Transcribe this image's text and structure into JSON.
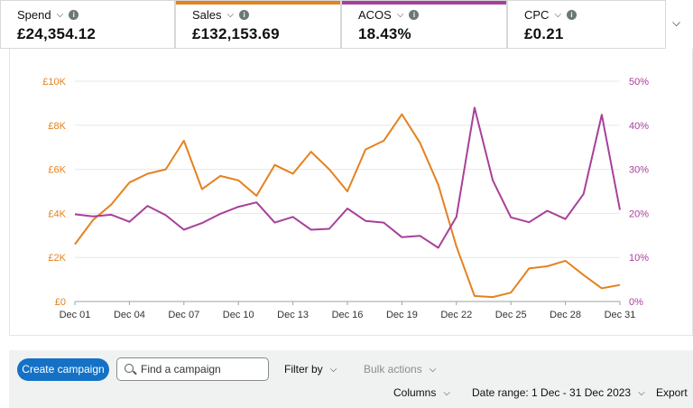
{
  "metrics": [
    {
      "label": "Spend",
      "value": "£24,354.12",
      "color": ""
    },
    {
      "label": "Sales",
      "value": "£132,153.69",
      "color": "#e3821f"
    },
    {
      "label": "ACOS",
      "value": "18.43%",
      "color": "#a8409a"
    },
    {
      "label": "CPC",
      "value": "£0.21",
      "color": ""
    }
  ],
  "toolbar": {
    "create_label": "Create campaign",
    "search_placeholder": "Find a campaign",
    "filter_label": "Filter by",
    "bulk_label": "Bulk actions",
    "columns_label": "Columns",
    "date_range_label": "Date range: 1 Dec - 31 Dec 2023",
    "export_label": "Export"
  },
  "chart_data": {
    "type": "line",
    "x": [
      "Dec 01",
      "Dec 02",
      "Dec 03",
      "Dec 04",
      "Dec 05",
      "Dec 06",
      "Dec 07",
      "Dec 08",
      "Dec 09",
      "Dec 10",
      "Dec 11",
      "Dec 12",
      "Dec 13",
      "Dec 14",
      "Dec 15",
      "Dec 16",
      "Dec 17",
      "Dec 18",
      "Dec 19",
      "Dec 20",
      "Dec 21",
      "Dec 22",
      "Dec 23",
      "Dec 24",
      "Dec 25",
      "Dec 26",
      "Dec 27",
      "Dec 28",
      "Dec 29",
      "Dec 30",
      "Dec 31"
    ],
    "x_tick_labels": [
      "Dec 01",
      "Dec 04",
      "Dec 07",
      "Dec 10",
      "Dec 13",
      "Dec 16",
      "Dec 19",
      "Dec 22",
      "Dec 25",
      "Dec 28",
      "Dec 31"
    ],
    "y_left": {
      "ticks": [
        "£0",
        "£2K",
        "£4K",
        "£6K",
        "£8K",
        "£10K"
      ],
      "lim": [
        0,
        10000
      ],
      "color": "#e3821f"
    },
    "y_right": {
      "ticks": [
        "0%",
        "10%",
        "20%",
        "30%",
        "40%",
        "50%"
      ],
      "lim": [
        0,
        50
      ],
      "color": "#a8409a"
    },
    "grid": true,
    "series": [
      {
        "name": "Sales",
        "axis": "left",
        "color": "#e3821f",
        "values": [
          2600,
          3700,
          4400,
          5400,
          5800,
          6000,
          7300,
          5100,
          5700,
          5500,
          4800,
          6200,
          5800,
          6800,
          6000,
          5000,
          6900,
          7300,
          8500,
          7200,
          5300,
          2500,
          250,
          200,
          400,
          1500,
          1600,
          1850,
          1200,
          600,
          750
        ]
      },
      {
        "name": "ACOS",
        "axis": "right",
        "color": "#a8409a",
        "values": [
          19.8,
          19.3,
          19.7,
          18.1,
          21.7,
          19.6,
          16.3,
          17.8,
          19.9,
          21.5,
          22.5,
          17.9,
          19.2,
          16.3,
          16.5,
          21.1,
          18.3,
          17.9,
          14.6,
          14.9,
          12.2,
          19.2,
          44.0,
          27.5,
          19.1,
          18.0,
          20.6,
          18.7,
          24.4,
          42.4,
          20.8
        ]
      }
    ]
  }
}
